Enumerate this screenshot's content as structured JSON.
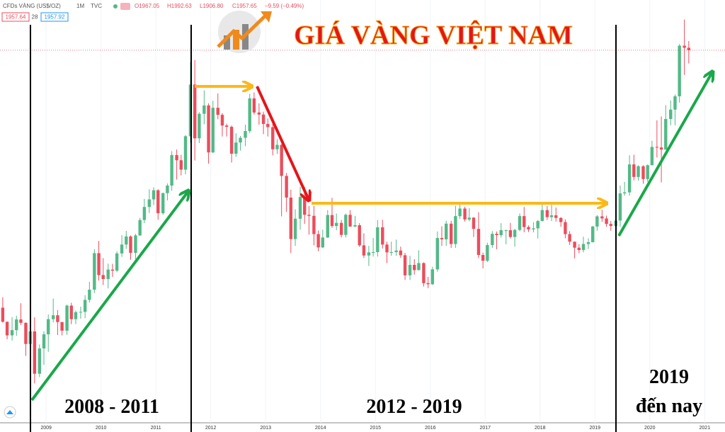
{
  "header": {
    "symbol": "CFDs VÀNG (US$/OZ)",
    "interval": "1M",
    "source": "TVC",
    "ohlc": [
      "O1967.05",
      "H1992.63",
      "L1906.80",
      "C1957.65",
      "−9.59 (−0.49%)"
    ],
    "badges": [
      "1957.64",
      "28",
      "1957.92"
    ]
  },
  "chart_data": {
    "type": "candlestick",
    "title": "GIÁ VÀNG VIỆT NAM",
    "up_color": "#53b987",
    "down_color": "#eb4d5c",
    "annotations": [
      "2008 - 2011",
      "2012 - 2019",
      "2019",
      "đến nay"
    ],
    "xlim": [
      2008.16,
      2021.37
    ],
    "xticks": [
      2009,
      2010,
      2011,
      2012,
      2013,
      2014,
      2015,
      2016,
      2017,
      2018,
      2019,
      2020,
      2021
    ],
    "ylim": [
      530,
      2150
    ],
    "x": [
      2008.21,
      2008.29,
      2008.38,
      2008.46,
      2008.54,
      2008.63,
      2008.71,
      2008.79,
      2008.88,
      2008.96,
      2009.04,
      2009.13,
      2009.21,
      2009.29,
      2009.38,
      2009.46,
      2009.54,
      2009.63,
      2009.71,
      2009.79,
      2009.88,
      2009.96,
      2010.04,
      2010.13,
      2010.21,
      2010.29,
      2010.38,
      2010.46,
      2010.54,
      2010.63,
      2010.71,
      2010.79,
      2010.88,
      2010.96,
      2011.04,
      2011.13,
      2011.21,
      2011.29,
      2011.38,
      2011.46,
      2011.54,
      2011.63,
      2011.71,
      2011.79,
      2011.88,
      2011.96,
      2012.04,
      2012.13,
      2012.21,
      2012.29,
      2012.38,
      2012.46,
      2012.54,
      2012.63,
      2012.71,
      2012.79,
      2012.88,
      2012.96,
      2013.04,
      2013.13,
      2013.21,
      2013.29,
      2013.38,
      2013.46,
      2013.54,
      2013.63,
      2013.71,
      2013.79,
      2013.88,
      2013.96,
      2014.04,
      2014.13,
      2014.21,
      2014.29,
      2014.38,
      2014.46,
      2014.54,
      2014.63,
      2014.71,
      2014.79,
      2014.88,
      2014.96,
      2015.04,
      2015.13,
      2015.21,
      2015.29,
      2015.38,
      2015.46,
      2015.54,
      2015.63,
      2015.71,
      2015.79,
      2015.88,
      2015.96,
      2016.04,
      2016.13,
      2016.21,
      2016.29,
      2016.38,
      2016.46,
      2016.54,
      2016.63,
      2016.71,
      2016.79,
      2016.88,
      2016.96,
      2017.04,
      2017.13,
      2017.21,
      2017.29,
      2017.38,
      2017.46,
      2017.54,
      2017.63,
      2017.71,
      2017.79,
      2017.88,
      2017.96,
      2018.04,
      2018.13,
      2018.21,
      2018.29,
      2018.38,
      2018.46,
      2018.54,
      2018.63,
      2018.71,
      2018.79,
      2018.88,
      2018.96,
      2019.04,
      2019.13,
      2019.21,
      2019.29,
      2019.38,
      2019.46,
      2019.54,
      2019.63,
      2019.71,
      2019.79,
      2019.88,
      2019.96,
      2020.04,
      2020.13,
      2020.21,
      2020.29,
      2020.38,
      2020.46,
      2020.54,
      2020.63,
      2020.71
    ],
    "open": [
      971,
      917,
      865,
      885,
      926,
      913,
      832,
      880,
      718,
      815,
      869,
      927,
      942,
      916,
      883,
      979,
      927,
      954,
      955,
      1001,
      1040,
      1180,
      1096,
      1081,
      1117,
      1113,
      1179,
      1213,
      1244,
      1181,
      1248,
      1307,
      1357,
      1386,
      1421,
      1333,
      1410,
      1439,
      1556,
      1536,
      1500,
      1628,
      1826,
      1620,
      1714,
      1746,
      1566,
      1737,
      1710,
      1669,
      1664,
      1561,
      1604,
      1622,
      1648,
      1773,
      1719,
      1711,
      1675,
      1663,
      1578,
      1595,
      1476,
      1393,
      1234,
      1312,
      1395,
      1327,
      1323,
      1253,
      1202,
      1240,
      1326,
      1284,
      1296,
      1250,
      1327,
      1282,
      1287,
      1210,
      1171,
      1183,
      1184,
      1279,
      1213,
      1183,
      1184,
      1190,
      1172,
      1095,
      1135,
      1115,
      1142,
      1065,
      1061,
      1118,
      1238,
      1233,
      1293,
      1215,
      1322,
      1351,
      1309,
      1316,
      1273,
      1173,
      1151,
      1211,
      1254,
      1249,
      1268,
      1268,
      1242,
      1269,
      1322,
      1280,
      1271,
      1275,
      1303,
      1345,
      1318,
      1325,
      1315,
      1299,
      1253,
      1224,
      1201,
      1192,
      1215,
      1222,
      1282,
      1321,
      1313,
      1292,
      1284,
      1305,
      1409,
      1413,
      1520,
      1472,
      1513,
      1464,
      1517,
      1587,
      1585,
      1577,
      1694,
      1730,
      1781,
      1975,
      1967.05
    ],
    "high": [
      1011,
      918,
      935,
      940,
      988,
      915,
      913,
      934,
      830,
      881,
      945,
      1006,
      962,
      916,
      983,
      990,
      960,
      975,
      1019,
      1070,
      1195,
      1227,
      1161,
      1140,
      1139,
      1187,
      1249,
      1265,
      1248,
      1254,
      1315,
      1388,
      1425,
      1432,
      1425,
      1412,
      1447,
      1571,
      1577,
      1557,
      1632,
      1912,
      1920,
      1720,
      1804,
      1754,
      1764,
      1792,
      1717,
      1676,
      1669,
      1639,
      1629,
      1672,
      1791,
      1796,
      1754,
      1722,
      1696,
      1675,
      1617,
      1598,
      1487,
      1423,
      1348,
      1434,
      1434,
      1361,
      1361,
      1267,
      1270,
      1345,
      1392,
      1332,
      1307,
      1332,
      1345,
      1323,
      1295,
      1256,
      1208,
      1238,
      1307,
      1308,
      1224,
      1224,
      1232,
      1205,
      1181,
      1170,
      1157,
      1191,
      1145,
      1089,
      1128,
      1263,
      1283,
      1304,
      1304,
      1362,
      1375,
      1358,
      1353,
      1318,
      1337,
      1182,
      1220,
      1264,
      1263,
      1295,
      1270,
      1296,
      1273,
      1332,
      1357,
      1286,
      1298,
      1307,
      1366,
      1361,
      1365,
      1355,
      1318,
      1309,
      1264,
      1224,
      1214,
      1243,
      1237,
      1285,
      1326,
      1346,
      1324,
      1303,
      1311,
      1439,
      1453,
      1555,
      1557,
      1517,
      1517,
      1520,
      1611,
      1689,
      1704,
      1747,
      1765,
      1788,
      1981,
      2075,
      1992.63
    ],
    "low": [
      914,
      850,
      845,
      863,
      905,
      786,
      740,
      681,
      705,
      752,
      802,
      915,
      866,
      865,
      867,
      908,
      908,
      929,
      931,
      991,
      1027,
      1075,
      1058,
      1045,
      1089,
      1107,
      1166,
      1196,
      1155,
      1157,
      1246,
      1295,
      1334,
      1364,
      1308,
      1327,
      1382,
      1419,
      1462,
      1478,
      1482,
      1603,
      1535,
      1602,
      1674,
      1523,
      1563,
      1693,
      1627,
      1627,
      1527,
      1549,
      1573,
      1590,
      1640,
      1711,
      1672,
      1636,
      1627,
      1555,
      1560,
      1321,
      1338,
      1180,
      1208,
      1270,
      1292,
      1251,
      1210,
      1187,
      1200,
      1238,
      1277,
      1268,
      1240,
      1240,
      1281,
      1280,
      1204,
      1161,
      1131,
      1167,
      1167,
      1198,
      1142,
      1170,
      1170,
      1162,
      1077,
      1077,
      1098,
      1114,
      1052,
      1046,
      1058,
      1109,
      1208,
      1208,
      1200,
      1200,
      1311,
      1301,
      1302,
      1242,
      1161,
      1122,
      1146,
      1200,
      1195,
      1240,
      1214,
      1236,
      1205,
      1264,
      1260,
      1261,
      1260,
      1236,
      1302,
      1307,
      1303,
      1301,
      1281,
      1237,
      1211,
      1160,
      1180,
      1183,
      1196,
      1221,
      1266,
      1300,
      1281,
      1266,
      1266,
      1281,
      1400,
      1400,
      1459,
      1458,
      1446,
      1454,
      1517,
      1547,
      1451,
      1576,
      1670,
      1670,
      1757,
      1863,
      1906.8
    ],
    "close": [
      917,
      865,
      885,
      926,
      913,
      832,
      880,
      718,
      815,
      869,
      927,
      942,
      916,
      883,
      979,
      927,
      954,
      955,
      1001,
      1040,
      1180,
      1096,
      1081,
      1117,
      1113,
      1179,
      1213,
      1244,
      1181,
      1248,
      1307,
      1357,
      1386,
      1421,
      1333,
      1410,
      1439,
      1556,
      1536,
      1500,
      1628,
      1826,
      1620,
      1714,
      1746,
      1566,
      1737,
      1710,
      1669,
      1664,
      1561,
      1604,
      1622,
      1648,
      1773,
      1719,
      1711,
      1675,
      1663,
      1578,
      1595,
      1476,
      1393,
      1234,
      1312,
      1395,
      1327,
      1323,
      1253,
      1202,
      1240,
      1326,
      1284,
      1296,
      1250,
      1327,
      1282,
      1287,
      1210,
      1171,
      1183,
      1184,
      1279,
      1213,
      1183,
      1184,
      1190,
      1172,
      1095,
      1135,
      1115,
      1142,
      1065,
      1061,
      1118,
      1238,
      1233,
      1293,
      1215,
      1322,
      1351,
      1309,
      1316,
      1273,
      1173,
      1151,
      1211,
      1254,
      1249,
      1268,
      1268,
      1242,
      1269,
      1322,
      1280,
      1271,
      1275,
      1303,
      1345,
      1318,
      1325,
      1315,
      1299,
      1253,
      1224,
      1201,
      1192,
      1215,
      1222,
      1282,
      1321,
      1313,
      1292,
      1284,
      1305,
      1409,
      1413,
      1520,
      1472,
      1513,
      1464,
      1517,
      1587,
      1585,
      1577,
      1694,
      1730,
      1781,
      1975,
      1967,
      1957.65
    ]
  }
}
